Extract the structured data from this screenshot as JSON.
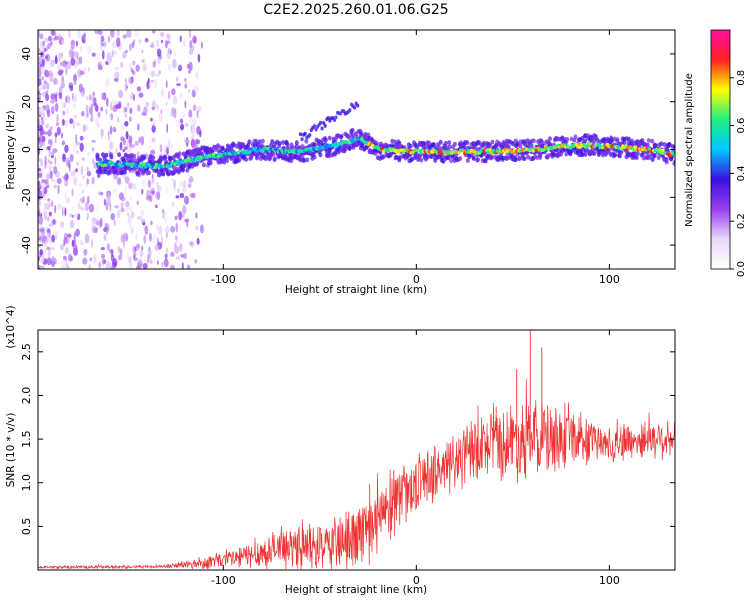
{
  "title": "C2E2.2025.260.01.06.G25",
  "chart_data": [
    {
      "type": "heatmap",
      "title": "",
      "xlabel": "Height of straight line (km)",
      "ylabel": "Frequency (Hz)",
      "xlim": [
        -196,
        134
      ],
      "ylim": [
        -50,
        50
      ],
      "x_ticks": [
        -100,
        0,
        100
      ],
      "y_ticks": [
        -40,
        -20,
        0,
        20,
        40
      ],
      "colorbar": {
        "label": "Normalized spectral amplitude",
        "range": [
          0,
          1
        ],
        "ticks": [
          0.0,
          0.2,
          0.4,
          0.6,
          0.8
        ],
        "tick_labels": [
          "0.0",
          "0.2",
          "0.4",
          "0.6",
          "0.8"
        ],
        "colormap": [
          "#ffffff",
          "#e8d8f8",
          "#9a3ff0",
          "#3a10e0",
          "#00c8ff",
          "#20f080",
          "#ffff00",
          "#ff2020",
          "#ff10a0"
        ]
      },
      "ridge": {
        "description_points": [
          {
            "x": -155,
            "freq": -6
          },
          {
            "x": -130,
            "freq": -7
          },
          {
            "x": -110,
            "freq": -3
          },
          {
            "x": -80,
            "freq": 0
          },
          {
            "x": -60,
            "freq": -1
          },
          {
            "x": -40,
            "freq": 2
          },
          {
            "x": -30,
            "freq": 5
          },
          {
            "x": -20,
            "freq": 0
          },
          {
            "x": 0,
            "freq": -1
          },
          {
            "x": 30,
            "freq": -1
          },
          {
            "x": 60,
            "freq": 0
          },
          {
            "x": 90,
            "freq": 2
          },
          {
            "x": 120,
            "freq": 0
          },
          {
            "x": 134,
            "freq": -2
          }
        ],
        "secondary_branch": [
          {
            "x": -60,
            "freq": 5
          },
          {
            "x": -45,
            "freq": 12
          },
          {
            "x": -30,
            "freq": 20
          }
        ]
      }
    },
    {
      "type": "line",
      "title": "",
      "xlabel": "Height of straight line (km)",
      "ylabel": "SNR (10 * v/v)",
      "y_multiplier": "(x10^4)",
      "xlim": [
        -196,
        134
      ],
      "ylim": [
        0,
        2.75
      ],
      "x_ticks": [
        -100,
        0,
        100
      ],
      "y_ticks": [
        0.5,
        1.0,
        1.5,
        2.0,
        2.5
      ],
      "y_tick_labels": [
        "0.5",
        "1.0",
        "1.5",
        "2.0",
        "2.5"
      ],
      "color": "#ee3333",
      "envelope": [
        {
          "x": -196,
          "mean": 0.03,
          "spread": 0.02
        },
        {
          "x": -130,
          "mean": 0.04,
          "spread": 0.02
        },
        {
          "x": -110,
          "mean": 0.08,
          "spread": 0.08
        },
        {
          "x": -90,
          "mean": 0.15,
          "spread": 0.15
        },
        {
          "x": -70,
          "mean": 0.25,
          "spread": 0.25
        },
        {
          "x": -50,
          "mean": 0.25,
          "spread": 0.3
        },
        {
          "x": -30,
          "mean": 0.35,
          "spread": 0.4
        },
        {
          "x": -20,
          "mean": 0.55,
          "spread": 0.5
        },
        {
          "x": -10,
          "mean": 0.8,
          "spread": 0.4
        },
        {
          "x": 0,
          "mean": 1.0,
          "spread": 0.35
        },
        {
          "x": 20,
          "mean": 1.25,
          "spread": 0.4
        },
        {
          "x": 40,
          "mean": 1.45,
          "spread": 0.45
        },
        {
          "x": 60,
          "mean": 1.5,
          "spread": 0.55
        },
        {
          "x": 80,
          "mean": 1.5,
          "spread": 0.35
        },
        {
          "x": 100,
          "mean": 1.45,
          "spread": 0.25
        },
        {
          "x": 120,
          "mean": 1.5,
          "spread": 0.25
        },
        {
          "x": 134,
          "mean": 1.5,
          "spread": 0.25
        }
      ],
      "peaks": [
        {
          "x": 59,
          "y": 2.75
        },
        {
          "x": 65,
          "y": 2.55
        },
        {
          "x": 52,
          "y": 2.3
        }
      ]
    }
  ]
}
